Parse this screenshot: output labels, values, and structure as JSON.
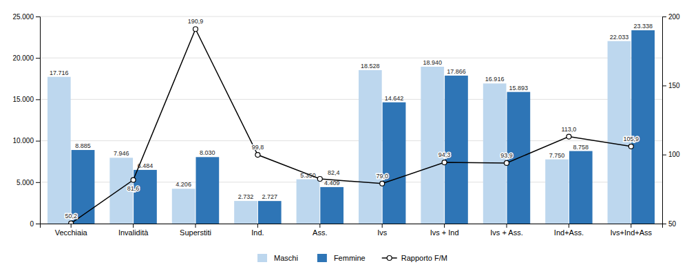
{
  "chart_data": {
    "type": "bar",
    "categories": [
      "Vecchiaia",
      "Invalidità",
      "Superstiti",
      "Ind.",
      "Ass.",
      "Ivs",
      "Ivs + Ind",
      "Ivs + Ass.",
      "Ind+Ass.",
      "Ivs+Ind+Ass"
    ],
    "series": [
      {
        "name": "Maschi",
        "type": "bar",
        "color": "#BDD7EE",
        "values": [
          17716,
          7946,
          4206,
          2732,
          5350,
          18528,
          18940,
          16916,
          7750,
          22033
        ],
        "value_labels": [
          "17.716",
          "7.946",
          "4.206",
          "2.732",
          "5.350",
          "18.528",
          "18.940",
          "16.916",
          "7.750",
          "22.033"
        ]
      },
      {
        "name": "Femmine",
        "type": "bar",
        "color": "#2E75B6",
        "values": [
          8885,
          6484,
          8030,
          2727,
          4409,
          14642,
          17866,
          15893,
          8758,
          23338
        ],
        "value_labels": [
          "8.885",
          "6.484",
          "8.030",
          "2.727",
          "4.409",
          "14.642",
          "17.866",
          "15.893",
          "8.758",
          "23.338"
        ]
      },
      {
        "name": "Rapporto F/M",
        "type": "line",
        "axis": "y2",
        "color": "#000000",
        "marker": "circle",
        "values": [
          50.2,
          81.6,
          190.9,
          99.8,
          82.4,
          79.0,
          94.3,
          93.9,
          113.0,
          105.9
        ],
        "value_labels": [
          "50,2",
          "81,6",
          "190,9",
          "99,8",
          "82,4",
          "79,0",
          "94,3",
          "93,9",
          "113,0",
          "105,9"
        ]
      }
    ],
    "ylim": [
      0,
      25000
    ],
    "yticks": [
      0,
      {
        "value": 5000,
        "label": "5.000"
      },
      {
        "value": 10000,
        "label": "10.000"
      },
      {
        "value": 15000,
        "label": "15.000"
      },
      {
        "value": 20000,
        "label": "20.000"
      },
      {
        "value": 25000,
        "label": "25.000"
      }
    ],
    "y2lim": [
      50,
      200
    ],
    "y2ticks": [
      50,
      100,
      150,
      200
    ],
    "grid": true,
    "legend": "bottom",
    "data_labels": true
  }
}
